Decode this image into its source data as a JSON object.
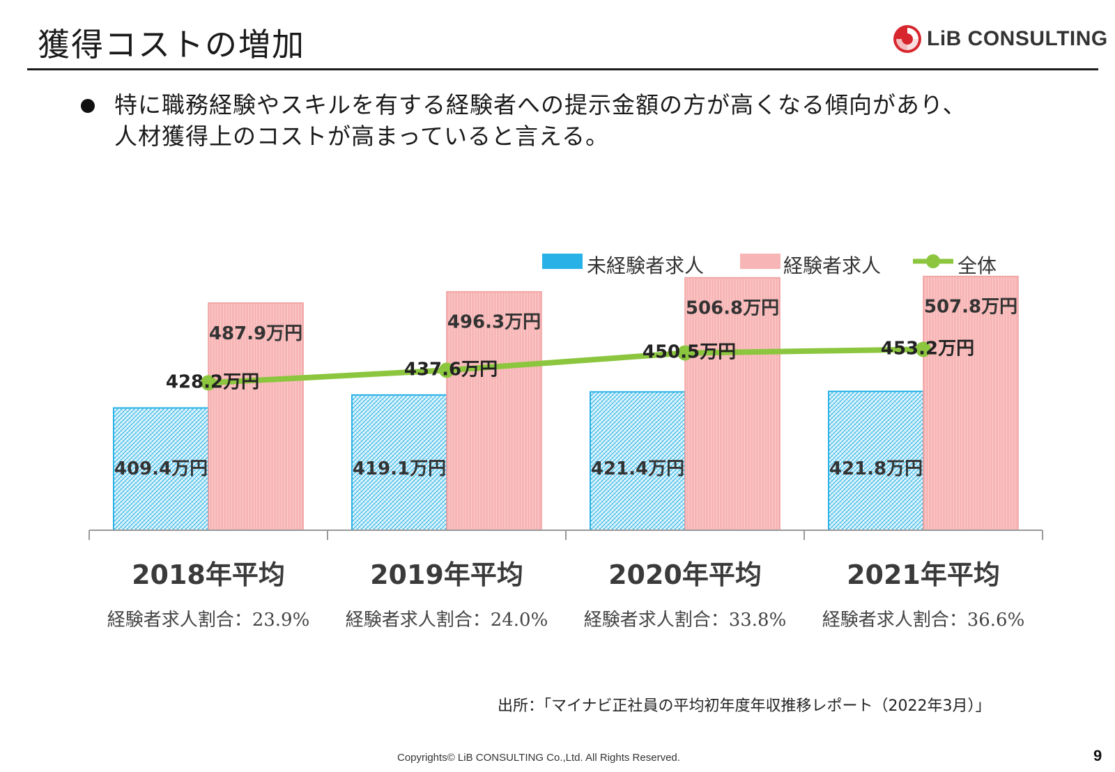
{
  "header": {
    "title": "獲得コストの増加",
    "logo_text": "LiB CONSULTING"
  },
  "bullet": {
    "text_line1": "特に職務経験やスキルを有する経験者への提示金額の方が高くなる傾向があり、",
    "text_line2": "人材獲得上のコストが高まっていると言える。"
  },
  "chart_data": {
    "type": "bar",
    "categories": [
      "2018年平均",
      "2019年平均",
      "2020年平均",
      "2021年平均"
    ],
    "series": [
      {
        "name": "未経験者求人",
        "kind": "bar",
        "values": [
          409.4,
          419.1,
          421.4,
          421.8
        ],
        "color": "#27b1e6",
        "labels": [
          "409.4万円",
          "419.1万円",
          "421.4万円",
          "421.8万円"
        ]
      },
      {
        "name": "経験者求人",
        "kind": "bar",
        "values": [
          487.9,
          496.3,
          506.8,
          507.8
        ],
        "color": "#f4a4a4",
        "labels": [
          "487.9万円",
          "496.3万円",
          "506.8万円",
          "507.8万円"
        ]
      },
      {
        "name": "全体",
        "kind": "line",
        "values": [
          428.2,
          437.6,
          450.5,
          453.2
        ],
        "color": "#8cc63f",
        "labels": [
          "428.2万円",
          "437.6万円",
          "450.5万円",
          "453.2万円"
        ]
      }
    ],
    "ratio_labels": [
      "経験者求人割合：23.9%",
      "経験者求人割合：24.0%",
      "経験者求人割合：33.8%",
      "経験者求人割合：36.6%"
    ],
    "legend_position": "top-right",
    "grid": false
  },
  "footer": {
    "source": "出所：「マイナビ正社員の平均初年度年収推移レポート（2022年3月）」",
    "copyright": "Copyrights© LiB CONSULTING Co.,Ltd.  All Rights Reserved.",
    "page_number": "9"
  }
}
